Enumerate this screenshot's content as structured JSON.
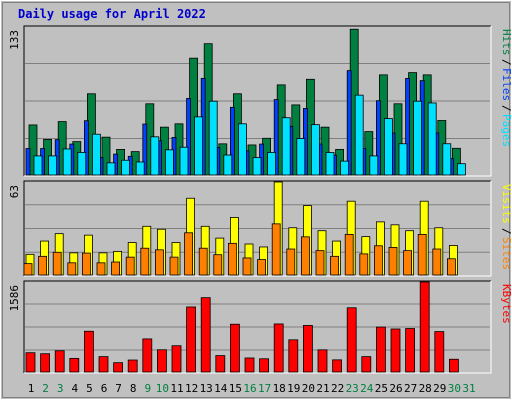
{
  "page": {
    "title": "Daily usage for April 2022"
  },
  "colors": {
    "background": "#c0c0c0",
    "hits": "#008040",
    "files": "#0040ff",
    "pages": "#00e0ff",
    "visits": "#ffff00",
    "sites": "#ff8000",
    "kbytes": "#ff0000",
    "title": "#0000cc",
    "day_weekday": "#000000",
    "day_weekend": "#008040"
  },
  "chart_data": [
    {
      "type": "bar",
      "panel": "hits-files-pages",
      "ymax_label": "133",
      "ylim": [
        0,
        133
      ],
      "legend": [
        {
          "label": "Pages",
          "color": "#00e0ff"
        },
        {
          "label": "Files",
          "color": "#0040ff"
        },
        {
          "label": "Hits",
          "color": "#008040"
        }
      ],
      "categories": [
        "1",
        "2",
        "3",
        "4",
        "5",
        "6",
        "7",
        "8",
        "9",
        "10",
        "11",
        "12",
        "13",
        "14",
        "15",
        "16",
        "17",
        "18",
        "19",
        "20",
        "21",
        "22",
        "23",
        "24",
        "25",
        "26",
        "27",
        "28",
        "29",
        "30",
        "31"
      ],
      "series": [
        {
          "name": "Hits",
          "values": [
            45,
            32,
            48,
            30,
            73,
            34,
            23,
            21,
            64,
            43,
            46,
            105,
            118,
            28,
            73,
            27,
            33,
            81,
            63,
            86,
            43,
            23,
            131,
            39,
            90,
            64,
            92,
            90,
            49,
            24,
            0
          ]
        },
        {
          "name": "Files",
          "values": [
            22,
            22,
            30,
            26,
            47,
            14,
            17,
            15,
            44,
            29,
            32,
            67,
            85,
            23,
            59,
            20,
            26,
            66,
            42,
            58,
            26,
            16,
            92,
            22,
            65,
            36,
            85,
            83,
            36,
            13,
            0
          ]
        },
        {
          "name": "Pages",
          "values": [
            22,
            22,
            30,
            26,
            47,
            14,
            17,
            15,
            44,
            29,
            32,
            67,
            85,
            23,
            59,
            20,
            26,
            66,
            42,
            58,
            26,
            16,
            92,
            22,
            65,
            36,
            85,
            83,
            36,
            13,
            0
          ]
        }
      ]
    },
    {
      "type": "bar",
      "panel": "visits-sites",
      "ymax_label": "63",
      "ylim": [
        0,
        63
      ],
      "legend": [
        {
          "label": "Sites",
          "color": "#ff8000"
        },
        {
          "label": "Visits",
          "color": "#ffff00"
        }
      ],
      "categories": [
        "1",
        "2",
        "3",
        "4",
        "5",
        "6",
        "7",
        "8",
        "9",
        "10",
        "11",
        "12",
        "13",
        "14",
        "15",
        "16",
        "17",
        "18",
        "19",
        "20",
        "21",
        "22",
        "23",
        "24",
        "25",
        "26",
        "27",
        "28",
        "29",
        "30",
        "31"
      ],
      "series": [
        {
          "name": "Visits",
          "values": [
            14,
            23,
            28,
            15,
            27,
            15,
            16,
            22,
            33,
            31,
            22,
            52,
            33,
            25,
            39,
            21,
            19,
            63,
            32,
            47,
            30,
            23,
            50,
            26,
            36,
            34,
            30,
            50,
            32,
            20,
            0
          ]
        },
        {
          "name": "Sites",
          "values": [
            14,
            23,
            28,
            15,
            27,
            15,
            16,
            22,
            33,
            31,
            22,
            52,
            33,
            25,
            39,
            21,
            19,
            63,
            32,
            47,
            30,
            23,
            50,
            26,
            36,
            34,
            30,
            50,
            32,
            20,
            0
          ]
        }
      ]
    },
    {
      "type": "bar",
      "panel": "kbytes",
      "ymax_label": "1586",
      "ylim": [
        0,
        1586
      ],
      "legend": [
        {
          "label": "KBytes",
          "color": "#ff0000"
        }
      ],
      "categories": [
        "1",
        "2",
        "3",
        "4",
        "5",
        "6",
        "7",
        "8",
        "9",
        "10",
        "11",
        "12",
        "13",
        "14",
        "15",
        "16",
        "17",
        "18",
        "19",
        "20",
        "21",
        "22",
        "23",
        "24",
        "25",
        "26",
        "27",
        "28",
        "29",
        "30",
        "31"
      ],
      "series": [
        {
          "name": "KBytes",
          "values": [
            340,
            322,
            374,
            240,
            718,
            271,
            164,
            211,
            583,
            392,
            463,
            1146,
            1310,
            289,
            842,
            247,
            233,
            847,
            567,
            820,
            391,
            214,
            1132,
            271,
            792,
            758,
            766,
            1586,
            712,
            225,
            0
          ]
        }
      ]
    }
  ],
  "x_axis": {
    "labels": [
      "1",
      "2",
      "3",
      "4",
      "5",
      "6",
      "7",
      "8",
      "9",
      "10",
      "11",
      "12",
      "13",
      "14",
      "15",
      "16",
      "17",
      "18",
      "19",
      "20",
      "21",
      "22",
      "23",
      "24",
      "25",
      "26",
      "27",
      "28",
      "29",
      "30",
      "31"
    ],
    "weekend_days": [
      "2",
      "3",
      "9",
      "10",
      "16",
      "17",
      "23",
      "24",
      "30",
      "31"
    ]
  }
}
